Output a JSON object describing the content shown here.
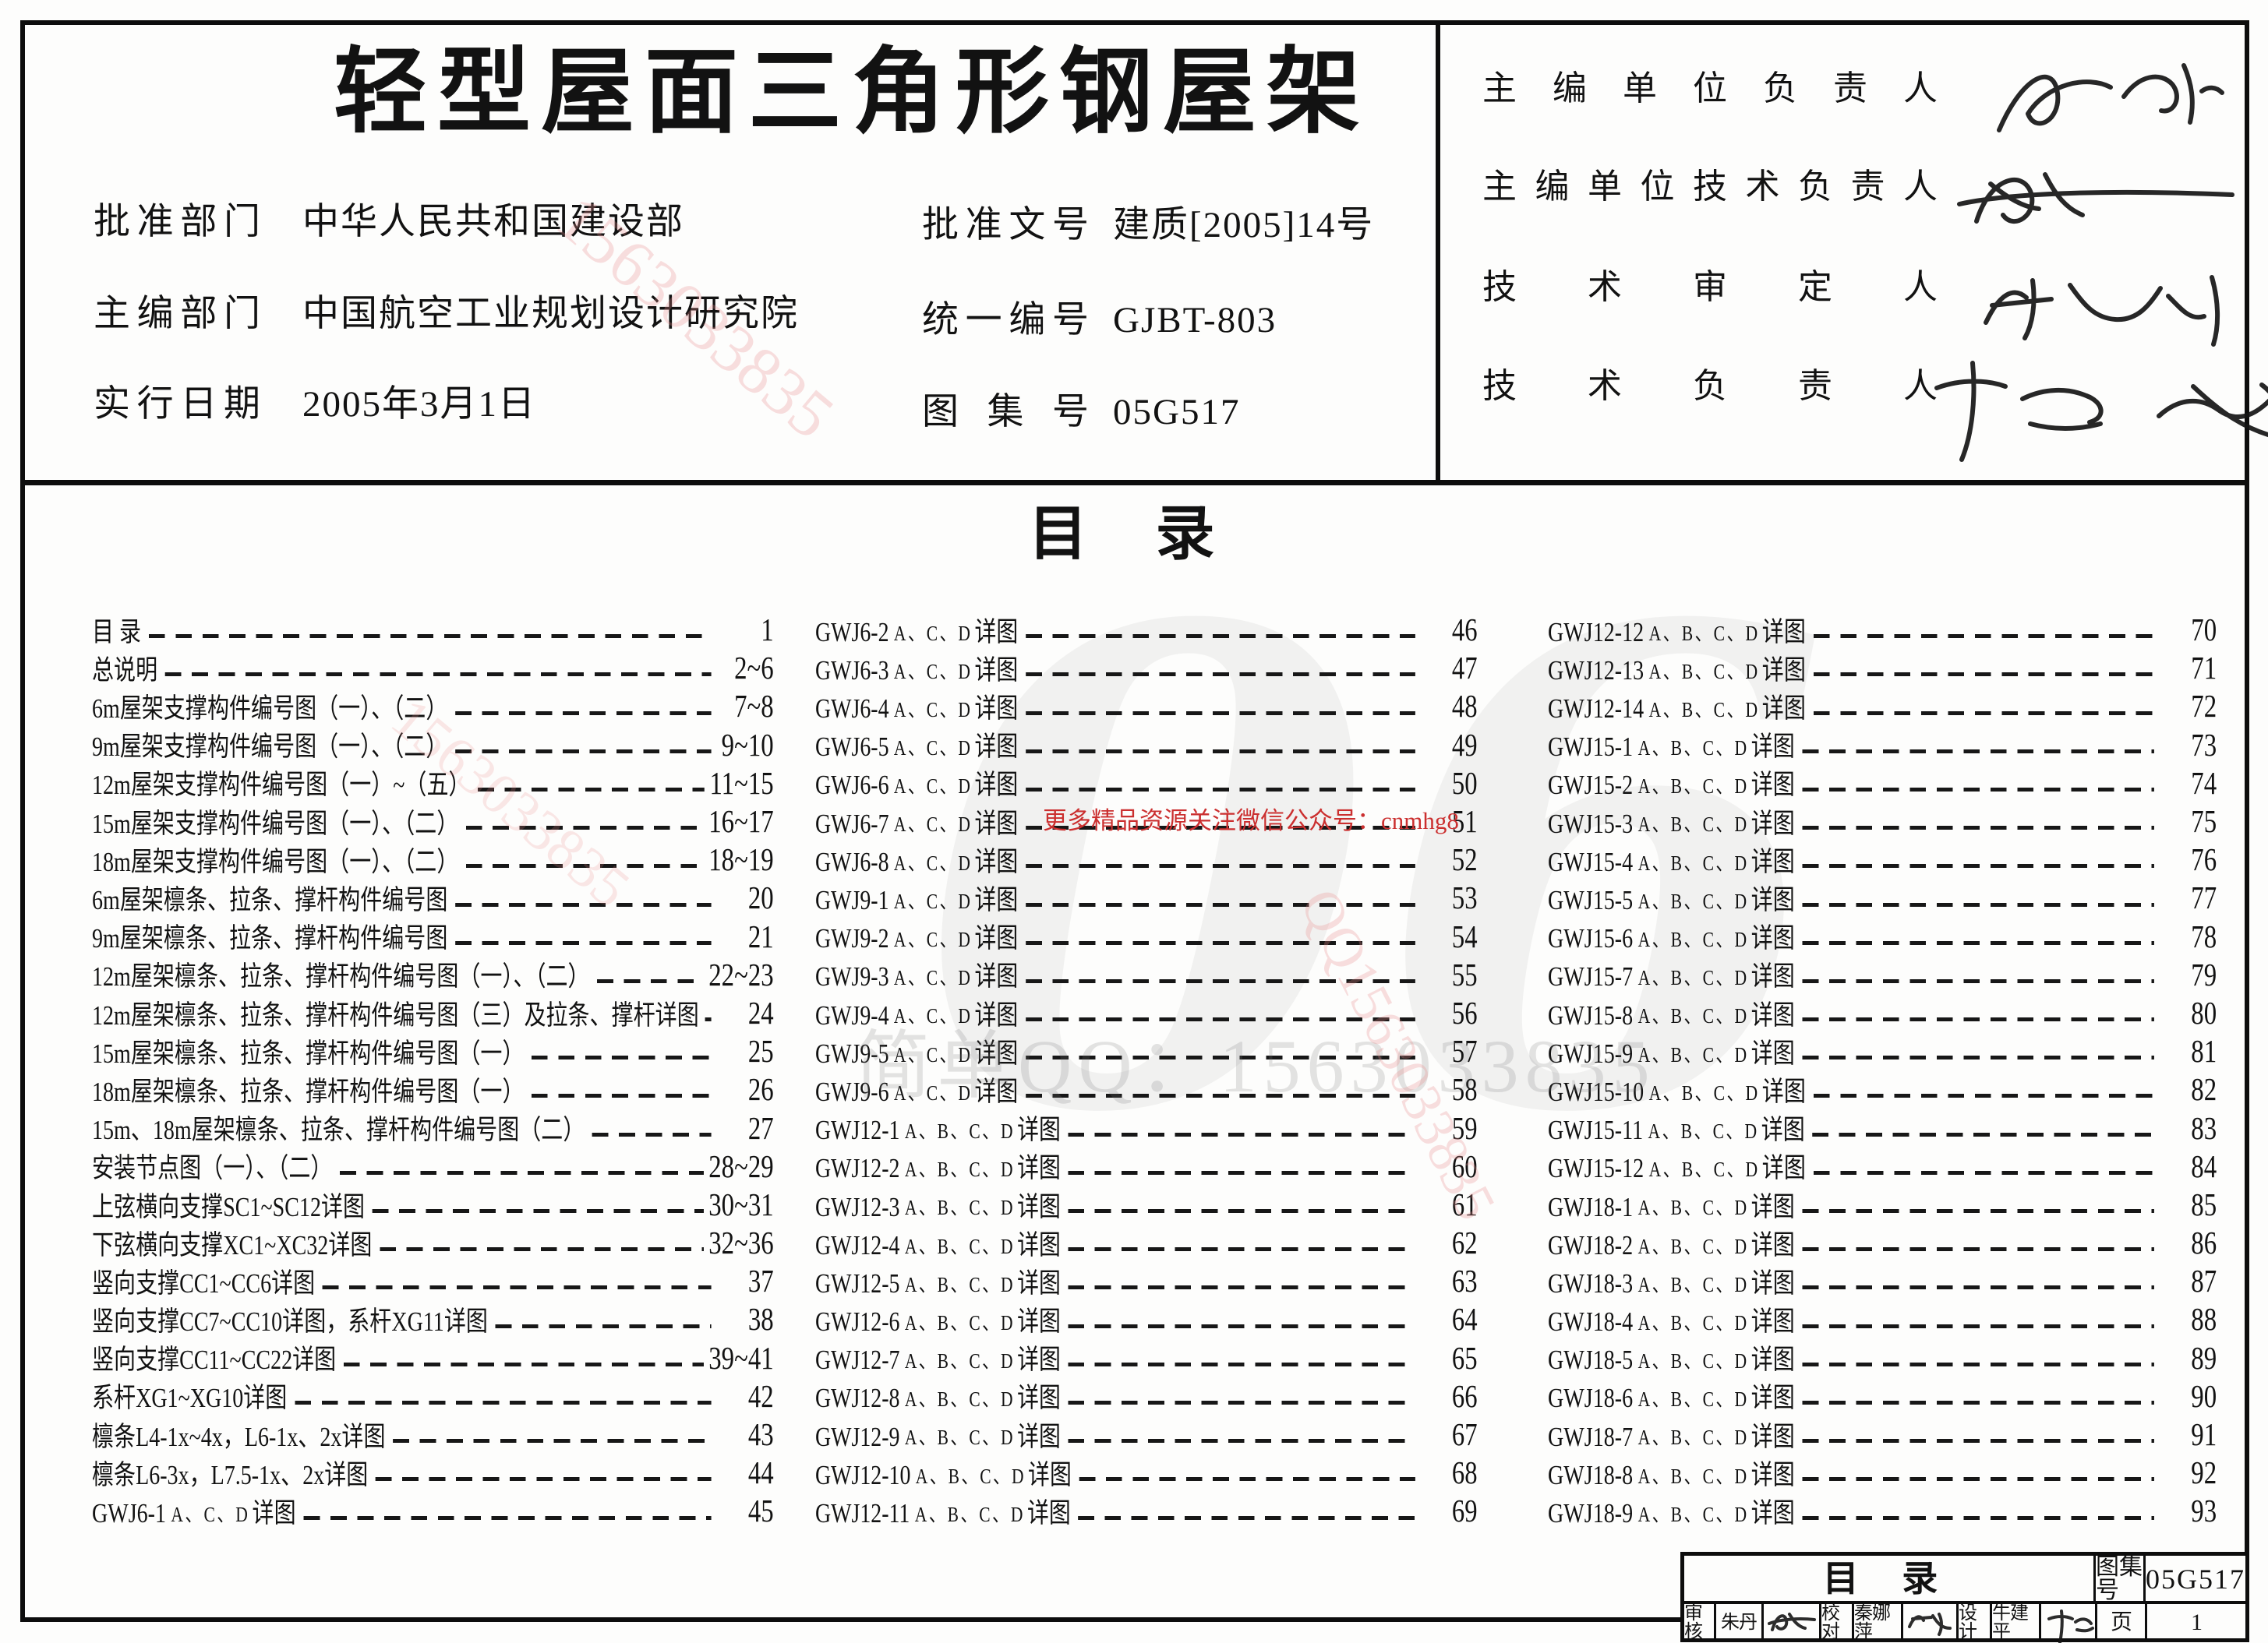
{
  "header": {
    "title": "轻型屋面三角形钢屋架",
    "info_left": [
      {
        "label": "批准部门",
        "value": "中华人民共和国建设部"
      },
      {
        "label": "主编部门",
        "value": "中国航空工业规划设计研究院"
      },
      {
        "label": "实行日期",
        "value": "2005年3月1日"
      }
    ],
    "info_right": [
      {
        "label": "批准文号",
        "value": "建质[2005]14号"
      },
      {
        "label": "统一编号",
        "value": "GJBT-803"
      },
      {
        "label": "图集号",
        "value": "05G517"
      }
    ],
    "signatures": [
      {
        "label": "主编单位负责人"
      },
      {
        "label": "主编单位技术负责人"
      },
      {
        "label": "技术审定人"
      },
      {
        "label": "技术负责人"
      }
    ]
  },
  "toc": {
    "heading": "目 录",
    "columns": [
      [
        {
          "t": "目 录",
          "p": "1"
        },
        {
          "t": "总说明",
          "p": "2~6"
        },
        {
          "t": "6m屋架支撑构件编号图（一）、（二）",
          "p": "7~8"
        },
        {
          "t": "9m屋架支撑构件编号图（一）、（二）",
          "p": "9~10"
        },
        {
          "t": "12m屋架支撑构件编号图（一）~（五）",
          "p": "11~15"
        },
        {
          "t": "15m屋架支撑构件编号图（一）、（二）",
          "p": "16~17"
        },
        {
          "t": "18m屋架支撑构件编号图（一）、（二）",
          "p": "18~19"
        },
        {
          "t": "6m屋架檩条、拉条、撑杆构件编号图",
          "p": "20"
        },
        {
          "t": "9m屋架檩条、拉条、撑杆构件编号图",
          "p": "21"
        },
        {
          "t": "12m屋架檩条、拉条、撑杆构件编号图（一）、（二）",
          "p": "22~23"
        },
        {
          "t": "12m屋架檩条、拉条、撑杆构件编号图（三）及拉条、撑杆详图",
          "p": "24"
        },
        {
          "t": "15m屋架檩条、拉条、撑杆构件编号图（一）",
          "p": "25"
        },
        {
          "t": "18m屋架檩条、拉条、撑杆构件编号图（一）",
          "p": "26"
        },
        {
          "t": "15m、18m屋架檩条、拉条、撑杆构件编号图（二）",
          "p": "27"
        },
        {
          "t": "安装节点图（一）、（二）",
          "p": "28~29"
        },
        {
          "t": "上弦横向支撑SC1~SC12详图",
          "p": "30~31"
        },
        {
          "t": "下弦横向支撑XC1~XC32详图",
          "p": "32~36"
        },
        {
          "t": "竖向支撑CC1~CC6详图",
          "p": "37"
        },
        {
          "t": "竖向支撑CC7~CC10详图，系杆XG11详图",
          "p": "38"
        },
        {
          "t": "竖向支撑CC11~CC22详图",
          "p": "39~41"
        },
        {
          "t": "系杆XG1~XG10详图",
          "p": "42"
        },
        {
          "t": "檩条L4-1x~4x，L6-1x、2x详图",
          "p": "43"
        },
        {
          "t": "檩条L6-3x，L7.5-1x、2x详图",
          "p": "44"
        },
        {
          "t": "GWJ6-1",
          "s": "A、C、D",
          "t2": "详图",
          "p": "45"
        }
      ],
      [
        {
          "t": "GWJ6-2",
          "s": "A、C、D",
          "t2": "详图",
          "p": "46"
        },
        {
          "t": "GWJ6-3",
          "s": "A、C、D",
          "t2": "详图",
          "p": "47"
        },
        {
          "t": "GWJ6-4",
          "s": "A、C、D",
          "t2": "详图",
          "p": "48"
        },
        {
          "t": "GWJ6-5",
          "s": "A、C、D",
          "t2": "详图",
          "p": "49"
        },
        {
          "t": "GWJ6-6",
          "s": "A、C、D",
          "t2": "详图",
          "p": "50"
        },
        {
          "t": "GWJ6-7",
          "s": "A、C、D",
          "t2": "详图",
          "p": "51"
        },
        {
          "t": "GWJ6-8",
          "s": "A、C、D",
          "t2": "详图",
          "p": "52"
        },
        {
          "t": "GWJ9-1",
          "s": "A、C、D",
          "t2": "详图",
          "p": "53"
        },
        {
          "t": "GWJ9-2",
          "s": "A、C、D",
          "t2": "详图",
          "p": "54"
        },
        {
          "t": "GWJ9-3",
          "s": "A、C、D",
          "t2": "详图",
          "p": "55"
        },
        {
          "t": "GWJ9-4",
          "s": "A、C、D",
          "t2": "详图",
          "p": "56"
        },
        {
          "t": "GWJ9-5",
          "s": "A、C、D",
          "t2": "详图",
          "p": "57"
        },
        {
          "t": "GWJ9-6",
          "s": "A、C、D",
          "t2": "详图",
          "p": "58"
        },
        {
          "t": "GWJ12-1",
          "s": "A、B、C、D",
          "t2": "详图",
          "p": "59"
        },
        {
          "t": "GWJ12-2",
          "s": "A、B、C、D",
          "t2": "详图",
          "p": "60"
        },
        {
          "t": "GWJ12-3",
          "s": "A、B、C、D",
          "t2": "详图",
          "p": "61"
        },
        {
          "t": "GWJ12-4",
          "s": "A、B、C、D",
          "t2": "详图",
          "p": "62"
        },
        {
          "t": "GWJ12-5",
          "s": "A、B、C、D",
          "t2": "详图",
          "p": "63"
        },
        {
          "t": "GWJ12-6",
          "s": "A、B、C、D",
          "t2": "详图",
          "p": "64"
        },
        {
          "t": "GWJ12-7",
          "s": "A、B、C、D",
          "t2": "详图",
          "p": "65"
        },
        {
          "t": "GWJ12-8",
          "s": "A、B、C、D",
          "t2": "详图",
          "p": "66"
        },
        {
          "t": "GWJ12-9",
          "s": "A、B、C、D",
          "t2": "详图",
          "p": "67"
        },
        {
          "t": "GWJ12-10",
          "s": "A、B、C、D",
          "t2": "详图",
          "p": "68"
        },
        {
          "t": "GWJ12-11",
          "s": "A、B、C、D",
          "t2": "详图",
          "p": "69"
        }
      ],
      [
        {
          "t": "GWJ12-12",
          "s": "A、B、C、D",
          "t2": "详图",
          "p": "70"
        },
        {
          "t": "GWJ12-13",
          "s": "A、B、C、D",
          "t2": "详图",
          "p": "71"
        },
        {
          "t": "GWJ12-14",
          "s": "A、B、C、D",
          "t2": "详图",
          "p": "72"
        },
        {
          "t": "GWJ15-1",
          "s": "A、B、C、D",
          "t2": "详图",
          "p": "73"
        },
        {
          "t": "GWJ15-2",
          "s": "A、B、C、D",
          "t2": "详图",
          "p": "74"
        },
        {
          "t": "GWJ15-3",
          "s": "A、B、C、D",
          "t2": "详图",
          "p": "75"
        },
        {
          "t": "GWJ15-4",
          "s": "A、B、C、D",
          "t2": "详图",
          "p": "76"
        },
        {
          "t": "GWJ15-5",
          "s": "A、B、C、D",
          "t2": "详图",
          "p": "77"
        },
        {
          "t": "GWJ15-6",
          "s": "A、B、C、D",
          "t2": "详图",
          "p": "78"
        },
        {
          "t": "GWJ15-7",
          "s": "A、B、C、D",
          "t2": "详图",
          "p": "79"
        },
        {
          "t": "GWJ15-8",
          "s": "A、B、C、D",
          "t2": "详图",
          "p": "80"
        },
        {
          "t": "GWJ15-9",
          "s": "A、B、C、D",
          "t2": "详图",
          "p": "81"
        },
        {
          "t": "GWJ15-10",
          "s": "A、B、C、D",
          "t2": "详图",
          "p": "82"
        },
        {
          "t": "GWJ15-11",
          "s": "A、B、C、D",
          "t2": "详图",
          "p": "83"
        },
        {
          "t": "GWJ15-12",
          "s": "A、B、C、D",
          "t2": "详图",
          "p": "84"
        },
        {
          "t": "GWJ18-1",
          "s": "A、B、C、D",
          "t2": "详图",
          "p": "85"
        },
        {
          "t": "GWJ18-2",
          "s": "A、B、C、D",
          "t2": "详图",
          "p": "86"
        },
        {
          "t": "GWJ18-3",
          "s": "A、B、C、D",
          "t2": "详图",
          "p": "87"
        },
        {
          "t": "GWJ18-4",
          "s": "A、B、C、D",
          "t2": "详图",
          "p": "88"
        },
        {
          "t": "GWJ18-5",
          "s": "A、B、C、D",
          "t2": "详图",
          "p": "89"
        },
        {
          "t": "GWJ18-6",
          "s": "A、B、C、D",
          "t2": "详图",
          "p": "90"
        },
        {
          "t": "GWJ18-7",
          "s": "A、B、C、D",
          "t2": "详图",
          "p": "91"
        },
        {
          "t": "GWJ18-8",
          "s": "A、B、C、D",
          "t2": "详图",
          "p": "92"
        },
        {
          "t": "GWJ18-9",
          "s": "A、B、C、D",
          "t2": "详图",
          "p": "93"
        }
      ]
    ]
  },
  "watermarks": {
    "red_note": "更多精品资源关注微信公众号：cnmhg8",
    "qq_banner": "简单QQ：1563033835",
    "diagonal_1": "1563033835",
    "diagonal_2": "QQ1563033835",
    "diagonal_3": "1563033835",
    "logo": "06"
  },
  "titleblock": {
    "sheet_title": "目 录",
    "atlas_label": "图集号",
    "atlas_no": "05G517",
    "page_label": "页",
    "page_no": "1",
    "credits": [
      {
        "role": "审核",
        "name": "朱丹"
      },
      {
        "role": "校对",
        "name": "秦娜萍"
      },
      {
        "role": "设计",
        "name": "牛建平"
      }
    ]
  }
}
